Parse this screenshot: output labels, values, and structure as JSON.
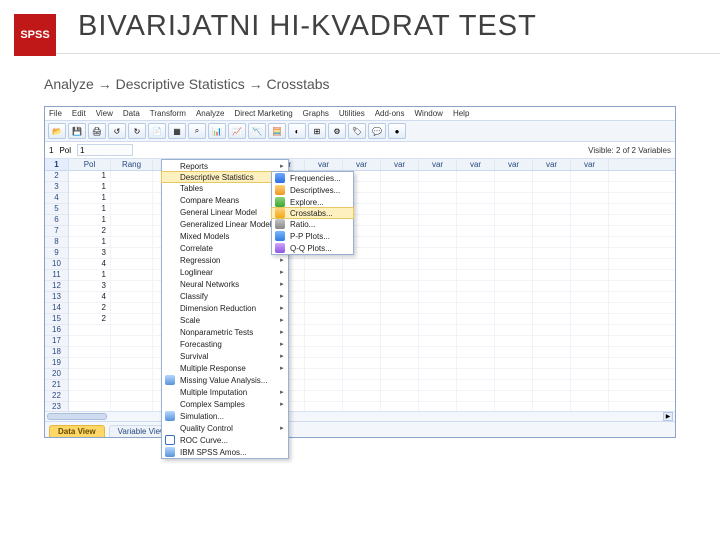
{
  "header": {
    "badge": "SPSS",
    "title": "BIVARIJATNI HI-KVADRAT TEST",
    "breadcrumb": "Analyze → Descriptive Statistics → Crosstabs"
  },
  "colors": {
    "badge_bg": "#c01818",
    "app_border": "#8aa3c8",
    "menu_highlight": "#fff0c0",
    "active_tab_bg": "#ffd766"
  },
  "menubar": [
    "File",
    "Edit",
    "View",
    "Data",
    "Transform",
    "Analyze",
    "Direct Marketing",
    "Graphs",
    "Utilities",
    "Add-ons",
    "Window",
    "Help"
  ],
  "toolbar_icons": [
    "📂",
    "💾",
    "🖨",
    "↺",
    "↻",
    "📄",
    "▦",
    "⌕",
    "📊",
    "📈",
    "📉",
    "🧮",
    "◐",
    "⊞",
    "⚙",
    "🏷",
    "💬",
    "●"
  ],
  "status": {
    "active_row": "1",
    "active_var": "Pol",
    "active_val": "1",
    "right": "Visible: 2 of 2 Variables"
  },
  "columns": [
    "Pol",
    "Rang",
    "var",
    "var",
    "var",
    "var",
    "var",
    "var",
    "var",
    "var",
    "var",
    "var",
    "var",
    "var"
  ],
  "rows": [
    {
      "n": "1",
      "pol": "1",
      "rang": ""
    },
    {
      "n": "2",
      "pol": "1",
      "rang": ""
    },
    {
      "n": "3",
      "pol": "1",
      "rang": ""
    },
    {
      "n": "4",
      "pol": "1",
      "rang": ""
    },
    {
      "n": "5",
      "pol": "1",
      "rang": ""
    },
    {
      "n": "6",
      "pol": "2",
      "rang": ""
    },
    {
      "n": "7",
      "pol": "1",
      "rang": ""
    },
    {
      "n": "8",
      "pol": "3",
      "rang": ""
    },
    {
      "n": "9",
      "pol": "4",
      "rang": ""
    },
    {
      "n": "10",
      "pol": "1",
      "rang": ""
    },
    {
      "n": "11",
      "pol": "3",
      "rang": ""
    },
    {
      "n": "12",
      "pol": "4",
      "rang": ""
    },
    {
      "n": "13",
      "pol": "2",
      "rang": ""
    },
    {
      "n": "14",
      "pol": "2",
      "rang": ""
    },
    {
      "n": "15",
      "pol": "",
      "rang": ""
    },
    {
      "n": "16",
      "pol": "",
      "rang": ""
    },
    {
      "n": "17",
      "pol": "",
      "rang": ""
    },
    {
      "n": "18",
      "pol": "",
      "rang": ""
    },
    {
      "n": "19",
      "pol": "",
      "rang": ""
    },
    {
      "n": "20",
      "pol": "",
      "rang": ""
    },
    {
      "n": "21",
      "pol": "",
      "rang": ""
    },
    {
      "n": "22",
      "pol": "",
      "rang": ""
    },
    {
      "n": "23",
      "pol": "",
      "rang": ""
    }
  ],
  "analyze_menu": [
    "Reports",
    "Descriptive Statistics",
    "Tables",
    "Compare Means",
    "General Linear Model",
    "Generalized Linear Models",
    "Mixed Models",
    "Correlate",
    "Regression",
    "Loglinear",
    "Neural Networks",
    "Classify",
    "Dimension Reduction",
    "Scale",
    "Nonparametric Tests",
    "Forecasting",
    "Survival",
    "Multiple Response",
    "Missing Value Analysis...",
    "Multiple Imputation",
    "Complex Samples",
    "Simulation...",
    "Quality Control",
    "ROC Curve...",
    "IBM SPSS Amos..."
  ],
  "analyze_highlight_index": 1,
  "desc_submenu": [
    "Frequencies...",
    "Descriptives...",
    "Explore...",
    "Crosstabs...",
    "Ratio...",
    "P-P Plots...",
    "Q-Q Plots..."
  ],
  "desc_highlight_index": 3,
  "tabs": {
    "active": "Data View",
    "other": "Variable View"
  }
}
